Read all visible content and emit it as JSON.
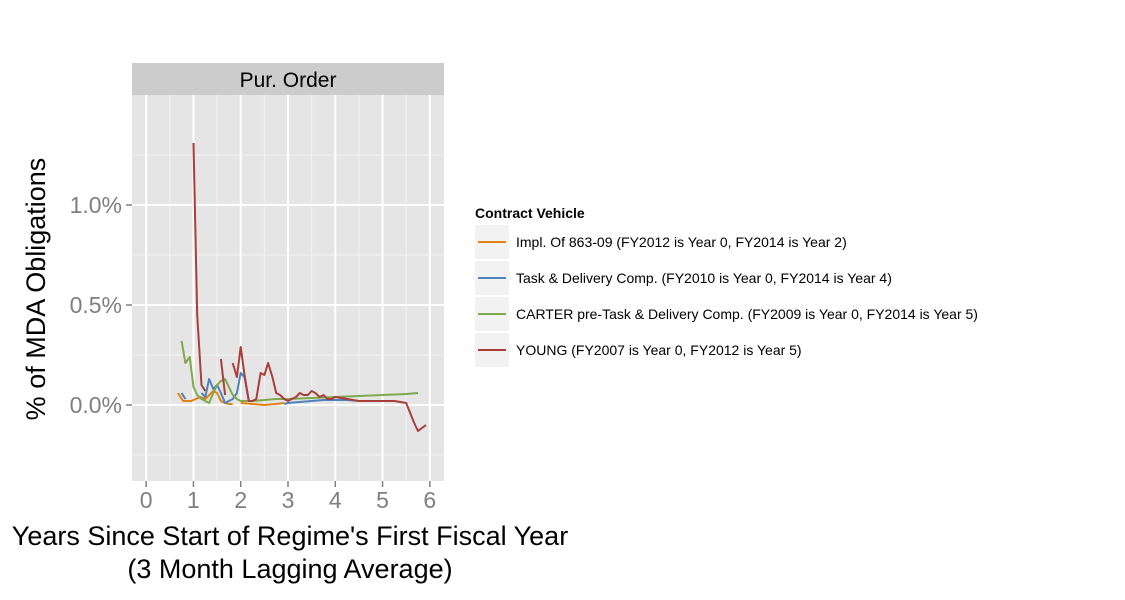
{
  "chart_data": {
    "type": "line",
    "panel_title": "Pur. Order",
    "xlabel_line1": "Years Since Start of Regime's First Fiscal Year",
    "xlabel_line2": "(3 Month Lagging Average)",
    "ylabel": "% of MDA Obligations",
    "xlim": [
      -0.3,
      6.3
    ],
    "ylim": [
      -0.38,
      1.55
    ],
    "x_ticks": [
      0,
      1,
      2,
      3,
      4,
      5,
      6
    ],
    "x_tick_labels": [
      "0",
      "1",
      "2",
      "3",
      "4",
      "5",
      "6"
    ],
    "y_ticks": [
      0.0,
      0.5,
      1.0
    ],
    "y_tick_labels": [
      "0.0%",
      "0.5%",
      "1.0%"
    ],
    "grid": true,
    "legend_position": "right",
    "legend_title": "Contract Vehicle",
    "series": [
      {
        "name": "Impl. Of 863-09 (FY2012 is Year 0, FY2014 is Year 2)",
        "color": "#e08214",
        "segments": [
          [
            [
              0.67,
              0.06
            ],
            [
              0.78,
              0.02
            ],
            [
              0.95,
              0.02
            ],
            [
              1.05,
              0.03
            ],
            [
              1.15,
              0.04
            ],
            [
              1.25,
              0.03
            ],
            [
              1.42,
              0.07
            ],
            [
              1.5,
              0.06
            ],
            [
              1.58,
              0.02
            ],
            [
              1.67,
              0.01
            ],
            [
              1.75,
              0.005
            ],
            [
              1.83,
              0.005
            ]
          ],
          [
            [
              2.0,
              0.01
            ],
            [
              2.25,
              0.005
            ],
            [
              2.5,
              0.0
            ],
            [
              2.75,
              0.005
            ],
            [
              2.92,
              0.01
            ]
          ]
        ]
      },
      {
        "name": "Task & Delivery Comp. (FY2010 is Year 0, FY2014 is Year 4)",
        "color": "#4f81bd",
        "segments": [
          [
            [
              0.75,
              0.06
            ],
            [
              0.83,
              0.03
            ]
          ],
          [
            [
              1.17,
              0.06
            ],
            [
              1.25,
              0.04
            ],
            [
              1.33,
              0.13
            ],
            [
              1.42,
              0.08
            ],
            [
              1.5,
              0.1
            ],
            [
              1.58,
              0.06
            ],
            [
              1.67,
              0.01
            ],
            [
              1.75,
              0.02
            ],
            [
              1.83,
              0.03
            ],
            [
              1.92,
              0.06
            ],
            [
              2.0,
              0.16
            ],
            [
              2.08,
              0.14
            ],
            [
              2.17,
              0.02
            ]
          ],
          [
            [
              2.92,
              0.005
            ],
            [
              3.0,
              0.01
            ],
            [
              3.25,
              0.015
            ],
            [
              3.5,
              0.02
            ],
            [
              3.75,
              0.025
            ],
            [
              4.0,
              0.025
            ],
            [
              4.25,
              0.025
            ],
            [
              4.5,
              0.02
            ],
            [
              4.75,
              0.02
            ]
          ]
        ]
      },
      {
        "name": "CARTER pre-Task & Delivery Comp. (FY2009 is Year 0, FY2014 is Year 5)",
        "color": "#7fa94a",
        "segments": [
          [
            [
              0.75,
              0.32
            ],
            [
              0.83,
              0.21
            ],
            [
              0.92,
              0.24
            ],
            [
              1.0,
              0.09
            ],
            [
              1.08,
              0.05
            ],
            [
              1.17,
              0.03
            ],
            [
              1.25,
              0.02
            ],
            [
              1.33,
              0.01
            ],
            [
              1.42,
              0.06
            ],
            [
              1.5,
              0.1
            ],
            [
              1.58,
              0.12
            ],
            [
              1.67,
              0.13
            ],
            [
              1.75,
              0.09
            ],
            [
              1.83,
              0.05
            ],
            [
              1.92,
              0.03
            ],
            [
              2.0,
              0.02
            ],
            [
              2.08,
              0.02
            ],
            [
              2.25,
              0.02
            ],
            [
              2.5,
              0.025
            ],
            [
              2.75,
              0.03
            ],
            [
              3.0,
              0.03
            ],
            [
              3.5,
              0.035
            ],
            [
              4.0,
              0.04
            ],
            [
              4.5,
              0.045
            ],
            [
              5.0,
              0.05
            ],
            [
              5.5,
              0.055
            ],
            [
              5.75,
              0.06
            ]
          ]
        ]
      },
      {
        "name": "YOUNG (FY2007 is Year 0, FY2012 is Year 5)",
        "color": "#a93e3a",
        "segments": [
          [
            [
              1.0,
              1.31
            ],
            [
              1.08,
              0.45
            ],
            [
              1.17,
              0.1
            ],
            [
              1.25,
              0.07
            ]
          ],
          [
            [
              1.58,
              0.23
            ],
            [
              1.67,
              0.05
            ]
          ],
          [
            [
              1.83,
              0.21
            ],
            [
              1.92,
              0.14
            ],
            [
              2.0,
              0.29
            ],
            [
              2.08,
              0.15
            ],
            [
              2.17,
              0.02
            ],
            [
              2.25,
              0.02
            ],
            [
              2.33,
              0.03
            ],
            [
              2.42,
              0.16
            ],
            [
              2.5,
              0.15
            ],
            [
              2.58,
              0.21
            ],
            [
              2.67,
              0.14
            ],
            [
              2.75,
              0.06
            ],
            [
              2.83,
              0.05
            ],
            [
              2.92,
              0.03
            ],
            [
              3.0,
              0.02
            ],
            [
              3.08,
              0.03
            ],
            [
              3.17,
              0.04
            ],
            [
              3.25,
              0.06
            ],
            [
              3.33,
              0.05
            ],
            [
              3.42,
              0.05
            ],
            [
              3.5,
              0.07
            ],
            [
              3.58,
              0.06
            ],
            [
              3.67,
              0.04
            ],
            [
              3.75,
              0.05
            ],
            [
              3.83,
              0.03
            ],
            [
              3.92,
              0.03
            ],
            [
              4.0,
              0.04
            ],
            [
              4.25,
              0.03
            ],
            [
              4.5,
              0.02
            ],
            [
              4.75,
              0.02
            ],
            [
              5.0,
              0.02
            ],
            [
              5.25,
              0.02
            ],
            [
              5.5,
              0.01
            ],
            [
              5.67,
              -0.09
            ],
            [
              5.75,
              -0.13
            ],
            [
              5.92,
              -0.1
            ]
          ]
        ]
      }
    ]
  }
}
